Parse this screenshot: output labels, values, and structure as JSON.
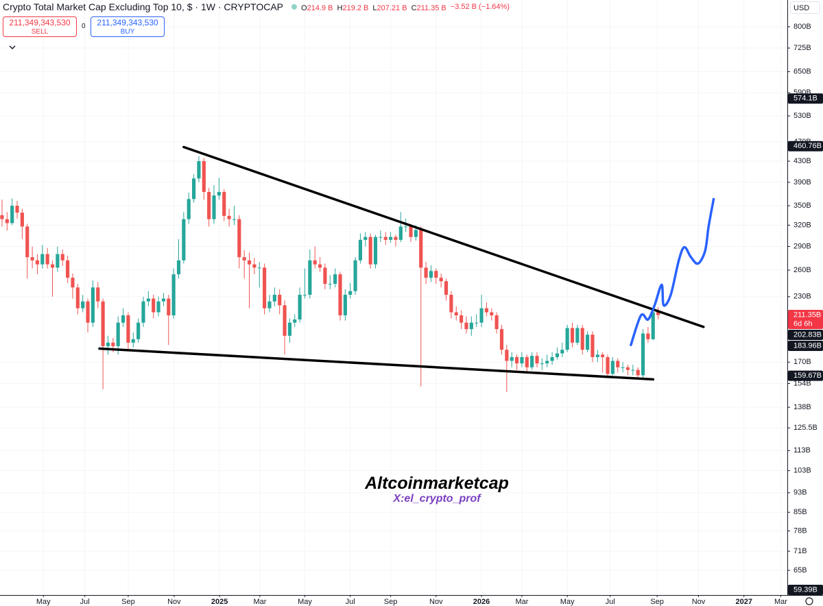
{
  "chart_data": {
    "type": "candlestick",
    "title": "Crypto Total Market Cap Excluding Top 10, $ · 1W · CRYPTOCAP",
    "ohlc_legend": [
      {
        "key": "O",
        "value": "214.9 B"
      },
      {
        "key": "H",
        "value": "219.2 B"
      },
      {
        "key": "L",
        "value": "207.21 B"
      },
      {
        "key": "C",
        "value": "211.35 B"
      }
    ],
    "change": "−3.52 B (−1.64%)",
    "sell": {
      "price": "211,349,343,530",
      "label": "SELL"
    },
    "spread": "0",
    "buy": {
      "price": "211,349,343,530",
      "label": "BUY"
    },
    "currency": "USD",
    "watermark": {
      "title": "Altcoinmarketcap",
      "subtitle": "X:el_crypto_prof"
    },
    "up_color": "#26a69a",
    "down_color": "#ef5350",
    "log_scale": true,
    "xlim": [
      -0.4,
      155.6
    ],
    "ylim": [
      58,
      905
    ],
    "xticks": [
      {
        "value": 8.2,
        "label": "May"
      },
      {
        "value": 16.4,
        "label": "Jul"
      },
      {
        "value": 25,
        "label": "Sep"
      },
      {
        "value": 34.1,
        "label": "Nov"
      },
      {
        "value": 43.1,
        "label": "2025"
      },
      {
        "value": 51.1,
        "label": "Mar"
      },
      {
        "value": 60,
        "label": "May"
      },
      {
        "value": 69,
        "label": "Jul"
      },
      {
        "value": 77,
        "label": "Sep"
      },
      {
        "value": 86,
        "label": "Nov"
      },
      {
        "value": 95,
        "label": "2026"
      },
      {
        "value": 103,
        "label": "Mar"
      },
      {
        "value": 112,
        "label": "May"
      },
      {
        "value": 120.5,
        "label": "Jul"
      },
      {
        "value": 129.8,
        "label": "Sep"
      },
      {
        "value": 138,
        "label": "Nov"
      },
      {
        "value": 147,
        "label": "2027"
      },
      {
        "value": 154.3,
        "label": "Mar"
      }
    ],
    "yticks": [
      {
        "value": 800,
        "label": "800B"
      },
      {
        "value": 725,
        "label": "725B"
      },
      {
        "value": 650,
        "label": "650B"
      },
      {
        "value": 590,
        "label": "590B"
      },
      {
        "value": 530,
        "label": "530B"
      },
      {
        "value": 470,
        "label": "470B"
      },
      {
        "value": 430,
        "label": "430B"
      },
      {
        "value": 390,
        "label": "390B"
      },
      {
        "value": 350,
        "label": "350B"
      },
      {
        "value": 320,
        "label": "320B"
      },
      {
        "value": 290,
        "label": "290B"
      },
      {
        "value": 260,
        "label": "260B"
      },
      {
        "value": 230,
        "label": "230B"
      },
      {
        "value": 170,
        "label": "170B"
      },
      {
        "value": 154,
        "label": "154B"
      },
      {
        "value": 138,
        "label": "138B"
      },
      {
        "value": 125.5,
        "label": "125.5B"
      },
      {
        "value": 113,
        "label": "113B"
      },
      {
        "value": 103,
        "label": "103B"
      },
      {
        "value": 93,
        "label": "93B"
      },
      {
        "value": 85,
        "label": "85B"
      },
      {
        "value": 78,
        "label": "78B"
      },
      {
        "value": 71,
        "label": "71B"
      },
      {
        "value": 65,
        "label": "65B"
      }
    ],
    "price_tags": [
      {
        "value": 574.1,
        "label": "574.1B",
        "color": "#131722"
      },
      {
        "value": 460.76,
        "label": "460.76B",
        "color": "#131722"
      },
      {
        "value": 211.35,
        "label": "211.35B",
        "note": "6d 6h",
        "color": "#f23645"
      },
      {
        "value": 202.83,
        "label": "202.83B",
        "color": "#131722"
      },
      {
        "value": 183.96,
        "label": "183.96B",
        "color": "#131722"
      },
      {
        "value": 159.67,
        "label": "159.67B",
        "color": "#131722"
      },
      {
        "value": 59.39,
        "label": "59.39B",
        "color": "#131722"
      }
    ],
    "drawings": [
      {
        "color": "#000000",
        "points": [
          [
            36,
            459
          ],
          [
            139,
            200
          ]
        ]
      },
      {
        "color": "#000000",
        "points": [
          [
            19.3,
            181
          ],
          [
            129,
            157
          ]
        ]
      },
      {
        "color": "#2962ff",
        "points": [
          [
            124.6,
            184
          ],
          [
            126.6,
            211
          ],
          [
            128,
            207
          ],
          [
            129.3,
            221
          ],
          [
            130.7,
            243
          ],
          [
            131.1,
            221
          ],
          [
            132.5,
            232
          ],
          [
            134.1,
            272
          ],
          [
            135.2,
            289
          ],
          [
            136.5,
            276
          ],
          [
            137.9,
            268
          ],
          [
            139.3,
            284
          ],
          [
            140,
            318
          ],
          [
            141,
            361
          ]
        ]
      }
    ],
    "candles": [
      [
        335,
        360,
        318,
        329
      ],
      [
        329,
        340,
        312,
        323
      ],
      [
        323,
        362,
        320,
        350
      ],
      [
        350,
        358,
        330,
        339
      ],
      [
        339,
        345,
        300,
        318
      ],
      [
        318,
        322,
        250,
        276
      ],
      [
        276,
        290,
        262,
        272
      ],
      [
        272,
        280,
        255,
        267
      ],
      [
        267,
        292,
        262,
        280
      ],
      [
        280,
        288,
        262,
        267
      ],
      [
        267,
        272,
        230,
        263
      ],
      [
        263,
        290,
        258,
        280
      ],
      [
        280,
        286,
        265,
        272
      ],
      [
        272,
        278,
        245,
        251
      ],
      [
        251,
        256,
        228,
        240
      ],
      [
        240,
        244,
        212,
        218
      ],
      [
        218,
        232,
        214,
        225
      ],
      [
        225,
        228,
        195,
        204
      ],
      [
        204,
        248,
        200,
        240
      ],
      [
        240,
        246,
        218,
        225
      ],
      [
        225,
        228,
        150,
        183
      ],
      [
        183,
        192,
        176,
        186
      ],
      [
        186,
        190,
        178,
        183
      ],
      [
        183,
        210,
        176,
        204
      ],
      [
        204,
        218,
        200,
        211
      ],
      [
        211,
        214,
        180,
        186
      ],
      [
        186,
        195,
        182,
        189
      ],
      [
        189,
        208,
        186,
        204
      ],
      [
        204,
        230,
        200,
        225
      ],
      [
        225,
        236,
        220,
        228
      ],
      [
        228,
        232,
        208,
        214
      ],
      [
        214,
        230,
        210,
        225
      ],
      [
        225,
        234,
        220,
        228
      ],
      [
        228,
        232,
        184,
        211
      ],
      [
        211,
        262,
        208,
        255
      ],
      [
        255,
        300,
        250,
        272
      ],
      [
        272,
        340,
        268,
        329
      ],
      [
        329,
        372,
        322,
        361
      ],
      [
        361,
        405,
        355,
        397
      ],
      [
        397,
        440,
        390,
        430
      ],
      [
        430,
        436,
        360,
        373
      ],
      [
        373,
        380,
        318,
        329
      ],
      [
        329,
        385,
        322,
        367
      ],
      [
        367,
        398,
        360,
        373
      ],
      [
        373,
        378,
        326,
        334
      ],
      [
        334,
        345,
        318,
        329
      ],
      [
        329,
        350,
        320,
        329
      ],
      [
        329,
        335,
        262,
        276
      ],
      [
        276,
        285,
        250,
        272
      ],
      [
        272,
        282,
        218,
        267
      ],
      [
        267,
        275,
        255,
        263
      ],
      [
        263,
        270,
        240,
        263
      ],
      [
        263,
        268,
        212,
        218
      ],
      [
        218,
        232,
        214,
        225
      ],
      [
        225,
        240,
        220,
        232
      ],
      [
        232,
        238,
        212,
        221
      ],
      [
        221,
        226,
        176,
        192
      ],
      [
        192,
        208,
        186,
        204
      ],
      [
        204,
        212,
        200,
        207
      ],
      [
        207,
        240,
        204,
        232
      ],
      [
        232,
        262,
        228,
        232
      ],
      [
        232,
        286,
        228,
        272
      ],
      [
        272,
        290,
        262,
        267
      ],
      [
        267,
        276,
        258,
        263
      ],
      [
        263,
        268,
        238,
        244
      ],
      [
        244,
        254,
        238,
        244
      ],
      [
        244,
        262,
        240,
        255
      ],
      [
        255,
        258,
        206,
        211
      ],
      [
        211,
        238,
        206,
        232
      ],
      [
        232,
        245,
        228,
        236
      ],
      [
        236,
        276,
        232,
        272
      ],
      [
        272,
        308,
        268,
        299
      ],
      [
        299,
        310,
        290,
        303
      ],
      [
        303,
        308,
        262,
        267
      ],
      [
        267,
        306,
        262,
        303
      ],
      [
        303,
        312,
        296,
        303
      ],
      [
        303,
        310,
        292,
        299
      ],
      [
        299,
        310,
        295,
        303
      ],
      [
        303,
        306,
        290,
        299
      ],
      [
        299,
        340,
        296,
        318
      ],
      [
        318,
        330,
        310,
        318
      ],
      [
        318,
        322,
        296,
        303
      ],
      [
        303,
        320,
        298,
        313
      ],
      [
        313,
        318,
        152,
        263
      ],
      [
        263,
        270,
        244,
        251
      ],
      [
        251,
        266,
        246,
        259
      ],
      [
        259,
        262,
        244,
        251
      ],
      [
        251,
        256,
        240,
        247
      ],
      [
        247,
        250,
        226,
        232
      ],
      [
        232,
        236,
        208,
        214
      ],
      [
        214,
        220,
        206,
        211
      ],
      [
        211,
        216,
        198,
        204
      ],
      [
        204,
        210,
        194,
        198
      ],
      [
        198,
        210,
        192,
        204
      ],
      [
        204,
        212,
        200,
        204
      ],
      [
        204,
        232,
        200,
        218
      ],
      [
        218,
        224,
        210,
        214
      ],
      [
        214,
        218,
        206,
        211
      ],
      [
        211,
        214,
        194,
        198
      ],
      [
        198,
        202,
        176,
        180
      ],
      [
        180,
        184,
        148,
        171
      ],
      [
        171,
        178,
        166,
        174
      ],
      [
        174,
        176,
        164,
        169
      ],
      [
        169,
        178,
        166,
        174
      ],
      [
        174,
        176,
        162,
        166
      ],
      [
        166,
        178,
        164,
        175
      ],
      [
        175,
        178,
        166,
        169
      ],
      [
        169,
        173,
        164,
        169
      ],
      [
        169,
        176,
        166,
        171
      ],
      [
        171,
        178,
        168,
        174
      ],
      [
        174,
        182,
        172,
        177
      ],
      [
        177,
        186,
        174,
        180
      ],
      [
        180,
        202,
        178,
        199
      ],
      [
        199,
        204,
        182,
        186
      ],
      [
        186,
        202,
        184,
        199
      ],
      [
        199,
        202,
        176,
        180
      ],
      [
        180,
        196,
        178,
        193
      ],
      [
        193,
        196,
        170,
        174
      ],
      [
        174,
        180,
        170,
        176
      ],
      [
        176,
        178,
        162,
        174
      ],
      [
        174,
        176,
        158,
        161
      ],
      [
        161,
        174,
        160,
        171
      ],
      [
        171,
        173,
        162,
        166
      ],
      [
        166,
        170,
        162,
        166
      ],
      [
        166,
        168,
        160,
        164
      ],
      [
        164,
        168,
        160,
        164
      ],
      [
        164,
        166,
        157,
        160
      ],
      [
        160,
        198,
        158,
        194
      ],
      [
        194,
        200,
        186,
        189
      ],
      [
        189,
        216,
        188,
        214
      ],
      [
        214.9,
        219.2,
        207.21,
        211.35
      ]
    ]
  }
}
